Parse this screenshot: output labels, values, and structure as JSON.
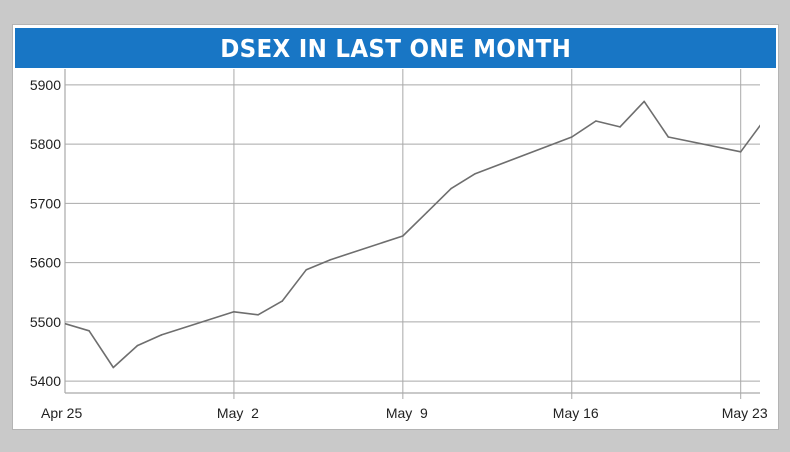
{
  "colors": {
    "title_bar": "#1876c5",
    "title_text": "#ffffff",
    "line": "#6e6e6e",
    "grid": "#a9a9a9",
    "page_background": "#c9c9c9",
    "card_background": "#ffffff"
  },
  "chart_data": {
    "type": "line",
    "title": "DSEX IN LAST ONE MONTH",
    "xlabel": "",
    "ylabel": "",
    "x_ticks": [
      {
        "label": "Apr 25",
        "day": 0
      },
      {
        "label": "May  2",
        "day": 7
      },
      {
        "label": "May  9",
        "day": 14
      },
      {
        "label": "May 16",
        "day": 21
      },
      {
        "label": "May 23",
        "day": 28
      }
    ],
    "xlim": [
      0,
      28.8
    ],
    "ylim": [
      5380,
      5920
    ],
    "y_ticks": [
      5400,
      5500,
      5600,
      5700,
      5800,
      5900
    ],
    "grid": "both",
    "legend": "none",
    "series": [
      {
        "x": [
          0,
          1,
          2,
          3,
          4,
          7,
          8,
          9,
          10,
          11,
          14,
          15,
          16,
          17,
          21,
          22,
          23,
          24,
          25,
          28,
          29
        ],
        "values": [
          5497,
          5485,
          5423,
          5460,
          5478,
          5517,
          5512,
          5535,
          5588,
          5605,
          5645,
          5685,
          5725,
          5750,
          5812,
          5839,
          5829,
          5872,
          5812,
          5787,
          5842
        ]
      }
    ]
  }
}
